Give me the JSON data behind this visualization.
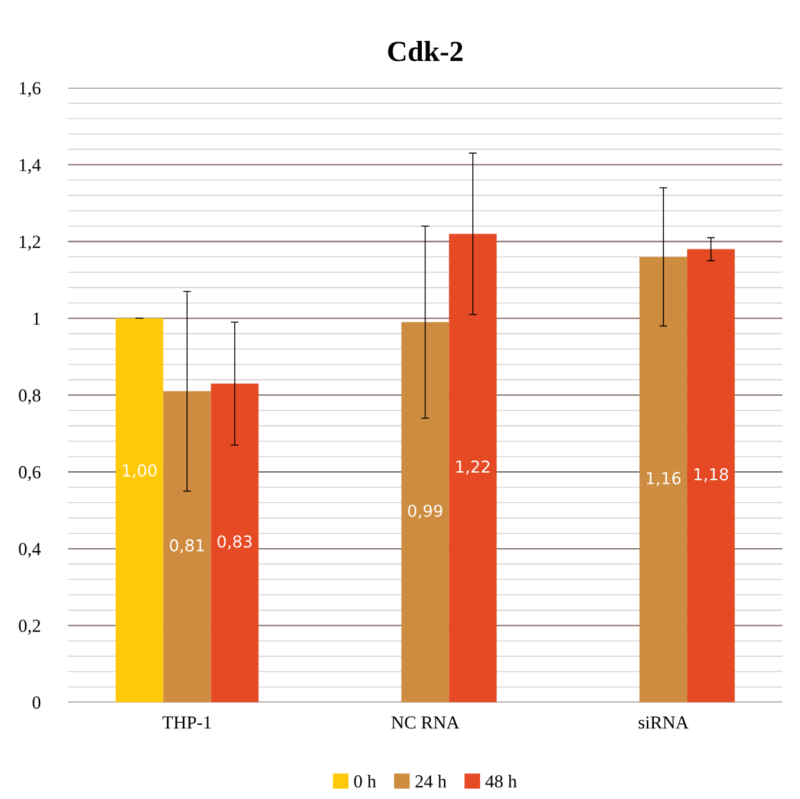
{
  "chart_data": {
    "type": "bar",
    "title": "Cdk-2",
    "categories": [
      "THP-1",
      "NC RNA",
      "siRNA"
    ],
    "series": [
      {
        "name": "0 h",
        "color": "#ffc90a",
        "values": [
          1.0,
          null,
          null
        ],
        "errors": [
          0.0,
          null,
          null
        ],
        "value_labels": [
          "1,00",
          null,
          null
        ]
      },
      {
        "name": "24 h",
        "color": "#cd8c3f",
        "values": [
          0.81,
          0.99,
          1.16
        ],
        "errors": [
          0.26,
          0.25,
          0.18
        ],
        "value_labels": [
          "0,81",
          "0,99",
          "1,16"
        ]
      },
      {
        "name": "48 h",
        "color": "#e54a24",
        "values": [
          0.83,
          1.22,
          1.18
        ],
        "errors": [
          0.16,
          0.21,
          0.03
        ],
        "value_labels": [
          "0,83",
          "1,22",
          "1,18"
        ]
      }
    ],
    "ylim": [
      0,
      1.6
    ],
    "yticks": [
      {
        "value": 0,
        "label": "0"
      },
      {
        "value": 0.04,
        "label": null
      },
      {
        "value": 0.08,
        "label": null
      },
      {
        "value": 0.12,
        "label": null
      },
      {
        "value": 0.16,
        "label": null
      },
      {
        "value": 0.2,
        "label": "0,2"
      },
      {
        "value": 0.24,
        "label": null
      },
      {
        "value": 0.28,
        "label": null
      },
      {
        "value": 0.32,
        "label": null
      },
      {
        "value": 0.36,
        "label": null
      },
      {
        "value": 0.4,
        "label": "0,4"
      },
      {
        "value": 0.44,
        "label": null
      },
      {
        "value": 0.48,
        "label": null
      },
      {
        "value": 0.52,
        "label": null
      },
      {
        "value": 0.56,
        "label": null
      },
      {
        "value": 0.6,
        "label": "0,6"
      },
      {
        "value": 0.64,
        "label": null
      },
      {
        "value": 0.68,
        "label": null
      },
      {
        "value": 0.72,
        "label": null
      },
      {
        "value": 0.76,
        "label": null
      },
      {
        "value": 0.8,
        "label": "0,8"
      },
      {
        "value": 0.84,
        "label": null
      },
      {
        "value": 0.88,
        "label": null
      },
      {
        "value": 0.92,
        "label": null
      },
      {
        "value": 0.96,
        "label": null
      },
      {
        "value": 1,
        "label": "1"
      },
      {
        "value": 1.04,
        "label": null
      },
      {
        "value": 1.08,
        "label": null
      },
      {
        "value": 1.12,
        "label": null
      },
      {
        "value": 1.16,
        "label": null
      },
      {
        "value": 1.2,
        "label": "1,2"
      },
      {
        "value": 1.24,
        "label": null
      },
      {
        "value": 1.28,
        "label": null
      },
      {
        "value": 1.32,
        "label": null
      },
      {
        "value": 1.36,
        "label": null
      },
      {
        "value": 1.4,
        "label": "1,4"
      },
      {
        "value": 1.44,
        "label": null
      },
      {
        "value": 1.48,
        "label": null
      },
      {
        "value": 1.52,
        "label": null
      },
      {
        "value": 1.56,
        "label": null
      },
      {
        "value": 1.6,
        "label": "1,6"
      }
    ],
    "grid": "y",
    "legend": "bottom"
  }
}
